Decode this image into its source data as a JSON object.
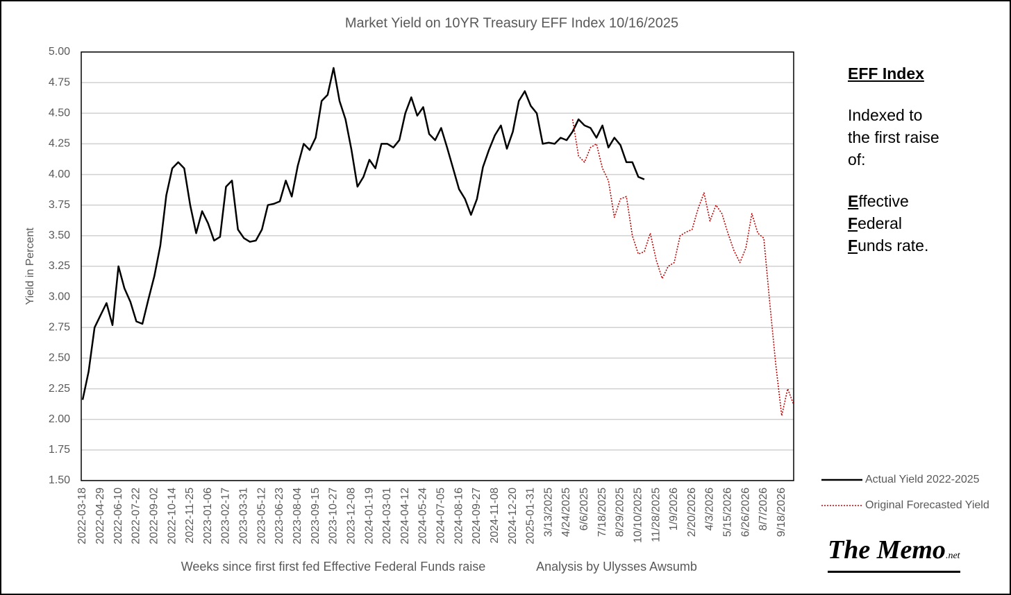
{
  "chart_data": {
    "type": "line",
    "title": "Market Yield on 10YR Treasury EFF Index 10/16/2025",
    "y_label": "Yield in Percent",
    "x_label": "Weeks since first first fed Effective Federal Funds raise",
    "credit": "Analysis by Ulysses Awsumb",
    "ylim": [
      1.5,
      5.0
    ],
    "yticks": [
      {
        "value": 1.5,
        "label": "1.50"
      },
      {
        "value": 1.75,
        "label": "1.75"
      },
      {
        "value": 2.0,
        "label": "2.00"
      },
      {
        "value": 2.25,
        "label": "2.25"
      },
      {
        "value": 2.5,
        "label": "2.50"
      },
      {
        "value": 2.75,
        "label": "2.75"
      },
      {
        "value": 3.0,
        "label": "3.00"
      },
      {
        "value": 3.25,
        "label": "3.25"
      },
      {
        "value": 3.5,
        "label": "3.50"
      },
      {
        "value": 3.75,
        "label": "3.75"
      },
      {
        "value": 4.0,
        "label": "4.00"
      },
      {
        "value": 4.25,
        "label": "4.25"
      },
      {
        "value": 4.5,
        "label": "4.50"
      },
      {
        "value": 4.75,
        "label": "4.75"
      },
      {
        "value": 5.0,
        "label": "5.00"
      }
    ],
    "grid": true,
    "legend": "right",
    "categories": [
      "2022-03-18",
      null,
      null,
      "2022-04-29",
      null,
      null,
      "2022-06-10",
      null,
      null,
      "2022-07-22",
      null,
      null,
      "2022-09-02",
      null,
      null,
      "2022-10-14",
      null,
      null,
      "2022-11-25",
      null,
      null,
      "2023-01-06",
      null,
      null,
      "2023-02-17",
      null,
      null,
      "2023-03-31",
      null,
      null,
      "2023-05-12",
      null,
      null,
      "2023-06-23",
      null,
      null,
      "2023-08-04",
      null,
      null,
      "2023-09-15",
      null,
      null,
      "2023-10-27",
      null,
      null,
      "2023-12-08",
      null,
      null,
      "2024-01-19",
      null,
      null,
      "2024-03-01",
      null,
      null,
      "2024-04-12",
      null,
      null,
      "2024-05-24",
      null,
      null,
      "2024-07-05",
      null,
      null,
      "2024-08-16",
      null,
      null,
      "2024-09-27",
      null,
      null,
      "2024-11-08",
      null,
      null,
      "2024-12-20",
      null,
      null,
      "2025-01-31",
      null,
      null,
      "3/13/2025",
      null,
      null,
      "4/24/2025",
      null,
      null,
      "6/6/2025",
      null,
      null,
      "7/18/2025",
      null,
      null,
      "8/29/2025",
      null,
      null,
      "10/10/2025",
      null,
      null,
      "11/28/2025",
      null,
      null,
      "1/9/2026",
      null,
      null,
      "2/20/2026",
      null,
      null,
      "4/3/2026",
      null,
      null,
      "5/15/2026",
      null,
      null,
      "6/26/2026",
      null,
      null,
      "8/7/2026",
      null,
      null,
      "9/18/2026",
      null,
      null
    ],
    "series": [
      {
        "name": "Actual Yield 2022-2025",
        "color": "#000000",
        "style": "solid",
        "values": [
          2.16,
          2.39,
          2.75,
          2.85,
          2.95,
          2.77,
          3.25,
          3.07,
          2.96,
          2.8,
          2.78,
          2.98,
          3.17,
          3.42,
          3.83,
          4.05,
          4.1,
          4.05,
          3.75,
          3.52,
          3.7,
          3.6,
          3.46,
          3.49,
          3.9,
          3.95,
          3.55,
          3.48,
          3.45,
          3.46,
          3.55,
          3.75,
          3.76,
          3.78,
          3.95,
          3.82,
          4.07,
          4.25,
          4.2,
          4.3,
          4.6,
          4.65,
          4.87,
          4.6,
          4.45,
          4.2,
          3.9,
          3.98,
          4.12,
          4.05,
          4.25,
          4.25,
          4.22,
          4.28,
          4.5,
          4.63,
          4.48,
          4.55,
          4.33,
          4.28,
          4.38,
          4.22,
          4.05,
          3.88,
          3.8,
          3.67,
          3.8,
          4.06,
          4.2,
          4.32,
          4.4,
          4.21,
          4.35,
          4.6,
          4.68,
          4.56,
          4.5,
          4.25,
          4.26,
          4.25,
          4.3,
          4.28,
          4.35,
          4.45,
          4.4,
          4.38,
          4.3,
          4.4,
          4.22,
          4.3,
          4.24,
          4.1,
          4.1,
          3.98,
          3.96,
          null,
          null,
          null,
          null,
          null,
          null,
          null,
          null,
          null,
          null,
          null,
          null,
          null,
          null,
          null,
          null,
          null,
          null,
          null,
          null,
          null,
          null,
          null,
          null,
          null
        ]
      },
      {
        "name": "Original Forecasted Yield",
        "color": "#c00000",
        "style": "dotted",
        "values": [
          null,
          null,
          null,
          null,
          null,
          null,
          null,
          null,
          null,
          null,
          null,
          null,
          null,
          null,
          null,
          null,
          null,
          null,
          null,
          null,
          null,
          null,
          null,
          null,
          null,
          null,
          null,
          null,
          null,
          null,
          null,
          null,
          null,
          null,
          null,
          null,
          null,
          null,
          null,
          null,
          null,
          null,
          null,
          null,
          null,
          null,
          null,
          null,
          null,
          null,
          null,
          null,
          null,
          null,
          null,
          null,
          null,
          null,
          null,
          null,
          null,
          null,
          null,
          null,
          null,
          null,
          null,
          null,
          null,
          null,
          null,
          null,
          null,
          null,
          null,
          null,
          null,
          null,
          null,
          null,
          null,
          null,
          4.45,
          4.15,
          4.1,
          4.22,
          4.25,
          4.05,
          3.95,
          3.65,
          3.8,
          3.82,
          3.5,
          3.35,
          3.37,
          3.52,
          3.3,
          3.15,
          3.25,
          3.28,
          3.5,
          3.53,
          3.55,
          3.72,
          3.85,
          3.62,
          3.75,
          3.68,
          3.52,
          3.38,
          3.28,
          3.4,
          3.68,
          3.52,
          3.48,
          2.95,
          2.45,
          2.03,
          2.25,
          2.12
        ]
      }
    ]
  },
  "side_note": {
    "heading": "EFF Index",
    "lines": [
      "Indexed to",
      "the first raise",
      "of:"
    ],
    "acronym_lines": [
      "Effective",
      "Federal",
      "Funds rate."
    ]
  },
  "logo": {
    "name": "The Memo",
    "suffix": ".net"
  }
}
